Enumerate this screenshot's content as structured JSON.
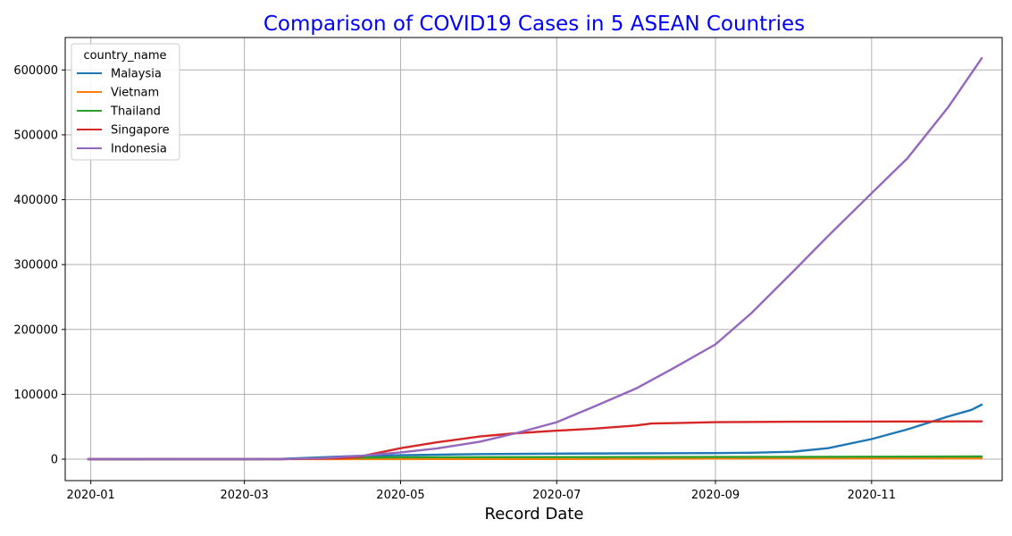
{
  "chart_data": {
    "type": "line",
    "title": "Comparison of COVID19 Cases in 5 ASEAN Countries",
    "title_color": "#0000ff",
    "xlabel": "Record Date",
    "ylabel": "",
    "xlim": [
      "2019-12-22",
      "2020-12-22"
    ],
    "ylim": [
      -33000,
      650000
    ],
    "x_ticks": [
      "2020-01-01",
      "2020-03-01",
      "2020-05-01",
      "2020-07-01",
      "2020-09-01",
      "2020-11-01"
    ],
    "x_tick_labels": [
      "2020-01",
      "2020-03",
      "2020-05",
      "2020-07",
      "2020-09",
      "2020-11"
    ],
    "y_ticks": [
      0,
      100000,
      200000,
      300000,
      400000,
      500000,
      600000
    ],
    "y_tick_labels": [
      "0",
      "100000",
      "200000",
      "300000",
      "400000",
      "500000",
      "600000"
    ],
    "grid": true,
    "legend_title": "country_name",
    "legend_position": "top-left",
    "series": [
      {
        "name": "Malaysia",
        "color": "#1f77b4",
        "points": [
          [
            "2019-12-31",
            0
          ],
          [
            "2020-03-01",
            30
          ],
          [
            "2020-03-15",
            450
          ],
          [
            "2020-04-01",
            3100
          ],
          [
            "2020-04-15",
            5100
          ],
          [
            "2020-05-01",
            6100
          ],
          [
            "2020-06-01",
            7900
          ],
          [
            "2020-07-01",
            8650
          ],
          [
            "2020-08-01",
            9000
          ],
          [
            "2020-09-01",
            9400
          ],
          [
            "2020-09-15",
            10000
          ],
          [
            "2020-10-01",
            11500
          ],
          [
            "2020-10-15",
            17000
          ],
          [
            "2020-11-01",
            31000
          ],
          [
            "2020-11-15",
            46000
          ],
          [
            "2020-12-01",
            66000
          ],
          [
            "2020-12-10",
            76000
          ],
          [
            "2020-12-14",
            84000
          ]
        ]
      },
      {
        "name": "Vietnam",
        "color": "#ff7f0e",
        "points": [
          [
            "2019-12-31",
            0
          ],
          [
            "2020-04-01",
            200
          ],
          [
            "2020-07-01",
            360
          ],
          [
            "2020-08-01",
            620
          ],
          [
            "2020-09-01",
            1040
          ],
          [
            "2020-12-14",
            1400
          ]
        ]
      },
      {
        "name": "Thailand",
        "color": "#2ca02c",
        "points": [
          [
            "2019-12-31",
            0
          ],
          [
            "2020-03-15",
            100
          ],
          [
            "2020-04-01",
            1800
          ],
          [
            "2020-05-01",
            2950
          ],
          [
            "2020-07-01",
            3200
          ],
          [
            "2020-10-01",
            3600
          ],
          [
            "2020-12-14",
            4200
          ]
        ]
      },
      {
        "name": "Singapore",
        "color": "#d62728",
        "points": [
          [
            "2019-12-31",
            0
          ],
          [
            "2020-03-15",
            250
          ],
          [
            "2020-04-01",
            1000
          ],
          [
            "2020-04-10",
            2000
          ],
          [
            "2020-04-15",
            3700
          ],
          [
            "2020-04-20",
            8000
          ],
          [
            "2020-04-25",
            12000
          ],
          [
            "2020-05-01",
            17000
          ],
          [
            "2020-05-15",
            26000
          ],
          [
            "2020-06-01",
            35000
          ],
          [
            "2020-06-15",
            40000
          ],
          [
            "2020-07-01",
            44000
          ],
          [
            "2020-07-15",
            47000
          ],
          [
            "2020-08-01",
            52000
          ],
          [
            "2020-08-07",
            55000
          ],
          [
            "2020-09-01",
            57000
          ],
          [
            "2020-10-01",
            57800
          ],
          [
            "2020-12-14",
            58300
          ]
        ]
      },
      {
        "name": "Indonesia",
        "color": "#9467bd",
        "points": [
          [
            "2019-12-31",
            0
          ],
          [
            "2020-03-01",
            0
          ],
          [
            "2020-03-15",
            100
          ],
          [
            "2020-04-01",
            1700
          ],
          [
            "2020-04-15",
            5100
          ],
          [
            "2020-05-01",
            10500
          ],
          [
            "2020-05-15",
            16500
          ],
          [
            "2020-06-01",
            27000
          ],
          [
            "2020-06-15",
            40000
          ],
          [
            "2020-07-01",
            57000
          ],
          [
            "2020-07-15",
            80000
          ],
          [
            "2020-08-01",
            109000
          ],
          [
            "2020-08-15",
            139000
          ],
          [
            "2020-09-01",
            177000
          ],
          [
            "2020-09-15",
            225000
          ],
          [
            "2020-10-01",
            288000
          ],
          [
            "2020-10-15",
            344000
          ],
          [
            "2020-11-01",
            410000
          ],
          [
            "2020-11-15",
            464000
          ],
          [
            "2020-12-01",
            543000
          ],
          [
            "2020-12-14",
            618000
          ]
        ]
      }
    ]
  }
}
